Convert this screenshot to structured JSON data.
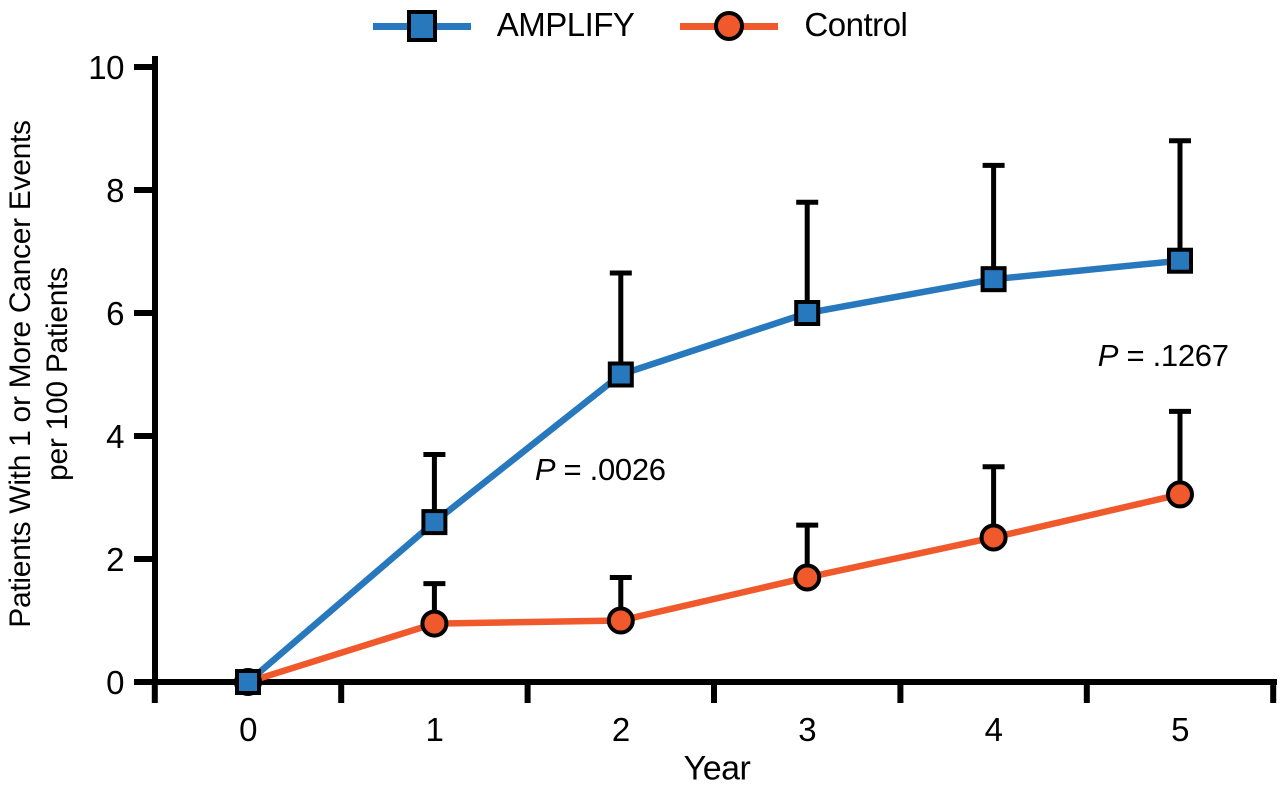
{
  "chart_data": {
    "type": "line",
    "title": "",
    "xlabel": "Year",
    "ylabel_lines": [
      "Patients With 1 or More Cancer Events",
      "per 100 Patients"
    ],
    "x": [
      0,
      1,
      2,
      3,
      4,
      5
    ],
    "x_tick_style": "edges-between-labels",
    "y_ticks": [
      0,
      2,
      4,
      6,
      8,
      10
    ],
    "ylim": [
      0,
      10
    ],
    "xlim_years": [
      0,
      5
    ],
    "grid": false,
    "legend_position": "top-center",
    "background": "#ffffff",
    "axis_color": "#000000",
    "series": [
      {
        "name": "AMPLIFY",
        "color": "#2878BE",
        "marker": "square",
        "values": [
          0,
          2.6,
          5.0,
          6.0,
          6.55,
          6.85
        ],
        "upper_ci": [
          null,
          3.7,
          6.65,
          7.8,
          8.4,
          8.8
        ]
      },
      {
        "name": "Control",
        "color": "#F0592B",
        "marker": "circle",
        "values": [
          0,
          0.95,
          1.0,
          1.7,
          2.35,
          3.05
        ],
        "upper_ci": [
          null,
          1.6,
          1.7,
          2.55,
          3.5,
          4.4
        ]
      }
    ],
    "annotations": [
      {
        "prefix_italic": "P",
        "text": " = .0026",
        "x": 1.89,
        "y": 3.46
      },
      {
        "prefix_italic": "P",
        "text": " = .1267",
        "x": 4.91,
        "y": 5.32
      }
    ]
  }
}
